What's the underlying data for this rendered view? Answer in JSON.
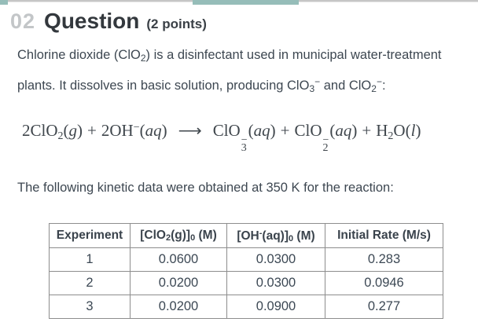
{
  "colors": {
    "accent_teal": "#96bdb9",
    "topbar_gray": "#c6c6c6",
    "question_number_gray": "#c3c6c8",
    "text_dark": "#3d4751",
    "table_border_gray": "#8d8d8d"
  },
  "header": {
    "number": "02",
    "title": "Question",
    "points": "(2 points)"
  },
  "intro": {
    "line1_a": "Chlorine dioxide (ClO",
    "line1_sub": "2",
    "line1_b": ") is a disinfectant used in municipal water-treatment",
    "line2_a": "plants. It dissolves in basic solution, producing ClO",
    "line2_sub1": "3",
    "line2_sup1": "−",
    "line2_b": " and ClO",
    "line2_sub2": "2",
    "line2_sup2": "−",
    "line2_c": ":"
  },
  "equation": {
    "lp": "(",
    "rp": ")",
    "coef1": "2ClO",
    "sub1": "2",
    "state1": "g",
    "plus": "+",
    "coef2": "2OH",
    "sup2": "−",
    "state2": "aq",
    "arrow": "⟶",
    "sp3": "ClO",
    "sup3": "−",
    "sub3": "3",
    "state3": "aq",
    "sp4": "ClO",
    "sup4": "−",
    "sub4": "2",
    "state4": "aq",
    "sp5a": "H",
    "sub5": "2",
    "sp5b": "O",
    "state5": "l"
  },
  "kinetic_line": "The following kinetic data were obtained at 350 K for the reaction:",
  "table": {
    "header_experiment": "Experiment",
    "header_clo2": {
      "a": "[ClO",
      "sub_a": "2",
      "b": "(g)]",
      "sub_b": "0",
      "c": " (M)"
    },
    "header_oh": {
      "a": "[OH",
      "sup_a": "-",
      "b": "(aq)]",
      "sub_b": "0",
      "c": " (M)"
    },
    "header_rate": "Initial Rate (M/s)",
    "rows": [
      [
        "1",
        "0.0600",
        "0.0300",
        "0.283"
      ],
      [
        "2",
        "0.0200",
        "0.0300",
        "0.0946"
      ],
      [
        "3",
        "0.0200",
        "0.0900",
        "0.277"
      ]
    ]
  }
}
